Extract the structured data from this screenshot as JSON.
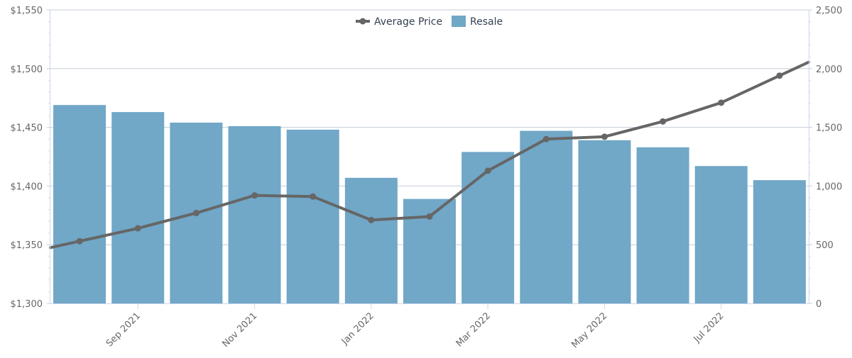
{
  "chart_data": {
    "type": "bar",
    "x_ticks": [
      "Sep 2021",
      "Nov 2021",
      "Jan 2022",
      "Mar 2022",
      "May 2022",
      "Jul 2022"
    ],
    "left_axis": {
      "ticks": [
        "$1,300",
        "$1,350",
        "$1,400",
        "$1,450",
        "$1,500",
        "$1,550"
      ],
      "ylim": [
        1300,
        1550
      ]
    },
    "right_axis": {
      "ticks": [
        "0",
        "500",
        "1,000",
        "1,500",
        "2,000",
        "2,500"
      ],
      "ylim": [
        0,
        2500
      ]
    },
    "legend": {
      "position": "top-center"
    },
    "grid": true,
    "series": [
      {
        "name": "Resale",
        "type": "bar",
        "axis": "right",
        "color": "#71a7c7",
        "categories": [
          "2021-08",
          "2021-09",
          "2021-10",
          "2021-11",
          "2021-12",
          "2022-01",
          "2022-02",
          "2022-03",
          "2022-04",
          "2022-05",
          "2022-06",
          "2022-07",
          "2022-08"
        ],
        "values": [
          1690,
          1630,
          1540,
          1510,
          1480,
          1070,
          890,
          1290,
          1470,
          1390,
          1330,
          1170,
          1050
        ]
      },
      {
        "name": "Average Price",
        "type": "line",
        "axis": "left",
        "color": "#666666",
        "categories": [
          "2021-08",
          "2021-09",
          "2021-10",
          "2021-11",
          "2021-12",
          "2022-01",
          "2022-02",
          "2022-03",
          "2022-04",
          "2022-05",
          "2022-06",
          "2022-07",
          "2022-08"
        ],
        "values": [
          1353,
          1364,
          1377,
          1392,
          1391,
          1371,
          1374,
          1413,
          1440,
          1442,
          1455,
          1471,
          1494
        ]
      }
    ]
  }
}
